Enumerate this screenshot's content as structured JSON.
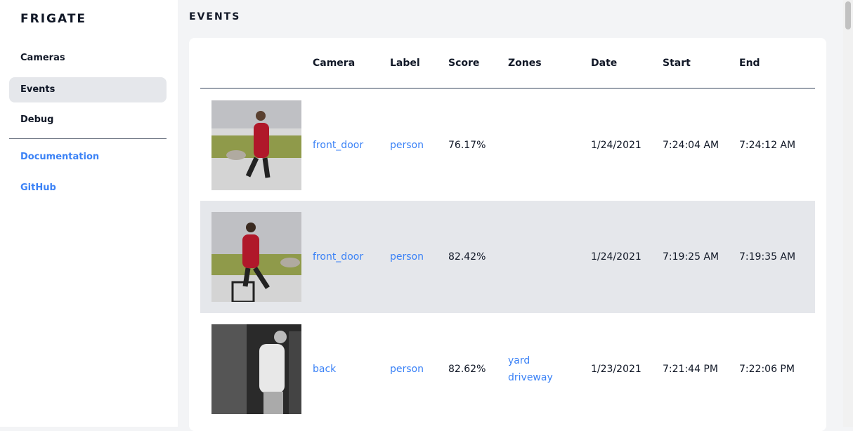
{
  "app": {
    "title": "FRIGATE"
  },
  "sidebar": {
    "items": [
      {
        "label": "Cameras"
      },
      {
        "label": "Events"
      },
      {
        "label": "Debug"
      }
    ],
    "links": [
      {
        "label": "Documentation"
      },
      {
        "label": "GitHub"
      }
    ]
  },
  "page": {
    "title": "EVENTS"
  },
  "table": {
    "headers": [
      "",
      "Camera",
      "Label",
      "Score",
      "Zones",
      "Date",
      "Start",
      "End"
    ],
    "rows": [
      {
        "camera": "front_door",
        "label": "person",
        "score": "76.17%",
        "zones": [
          "",
          ""
        ],
        "date": "1/24/2021",
        "start": "7:24:04 AM",
        "end": "7:24:12 AM"
      },
      {
        "camera": "front_door",
        "label": "person",
        "score": "82.42%",
        "zones": [
          "",
          ""
        ],
        "date": "1/24/2021",
        "start": "7:19:25 AM",
        "end": "7:19:35 AM"
      },
      {
        "camera": "back",
        "label": "person",
        "score": "82.62%",
        "zones": [
          "yard",
          "driveway"
        ],
        "date": "1/23/2021",
        "start": "7:21:44 PM",
        "end": "7:22:06 PM"
      }
    ]
  },
  "colors": {
    "accent": "#3b82f6",
    "active": "#e5e7eb"
  }
}
